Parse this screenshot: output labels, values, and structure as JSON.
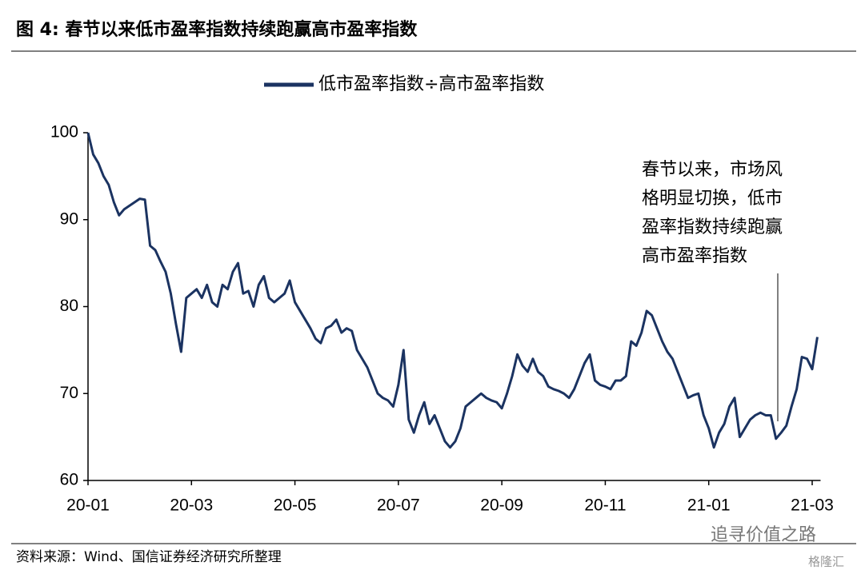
{
  "chart_data": {
    "type": "line",
    "title": "图 4: 春节以来低市盈率指数持续跑赢高市盈率指数",
    "source": "资料来源：Wind、国信证券经济研究所整理",
    "annotation": [
      "春节以来，市场风",
      "格明显切换，低市",
      "盈率指数持续跑赢",
      "高市盈率指数"
    ],
    "watermarks": [
      "追寻价值之路",
      "格隆汇"
    ],
    "categories": [
      "20-01",
      null,
      null,
      null,
      null,
      null,
      null,
      null,
      null,
      null,
      null,
      null,
      null,
      null,
      null,
      null,
      null,
      null,
      null,
      null,
      "20-03",
      null,
      null,
      null,
      null,
      null,
      null,
      null,
      null,
      null,
      null,
      null,
      null,
      null,
      null,
      null,
      null,
      null,
      null,
      null,
      "20-05",
      null,
      null,
      null,
      null,
      null,
      null,
      null,
      null,
      null,
      null,
      null,
      null,
      null,
      null,
      null,
      null,
      null,
      null,
      null,
      "20-07",
      null,
      null,
      null,
      null,
      null,
      null,
      null,
      null,
      null,
      null,
      null,
      null,
      null,
      null,
      null,
      null,
      null,
      null,
      null,
      "20-09",
      null,
      null,
      null,
      null,
      null,
      null,
      null,
      null,
      null,
      null,
      null,
      null,
      null,
      null,
      null,
      null,
      null,
      null,
      null,
      "20-11",
      null,
      null,
      null,
      null,
      null,
      null,
      null,
      null,
      null,
      null,
      null,
      null,
      null,
      null,
      null,
      null,
      null,
      null,
      null,
      "21-01",
      null,
      null,
      null,
      null,
      null,
      null,
      null,
      null,
      null,
      null,
      null,
      null,
      null,
      null,
      null,
      null,
      null,
      null,
      null,
      "21-03",
      null
    ],
    "series": [
      {
        "name": "低市盈率指数÷高市盈率指数",
        "color": "#1b3361",
        "values": [
          100,
          97.5,
          96.5,
          95,
          94,
          92,
          90.5,
          91.2,
          91.6,
          92,
          92.4,
          92.3,
          87,
          86.5,
          85.2,
          84,
          81.5,
          78,
          74.8,
          81,
          81.5,
          82,
          81,
          82.5,
          80.5,
          80,
          82.5,
          82,
          84,
          85,
          81.5,
          81.8,
          80,
          82.5,
          83.5,
          81,
          80.5,
          81,
          81.5,
          83,
          80.5,
          79.5,
          78.5,
          77.5,
          76.3,
          75.8,
          77.5,
          77.8,
          78.5,
          77,
          77.5,
          77.2,
          75,
          74,
          73,
          71.5,
          70,
          69.5,
          69.2,
          68.5,
          71,
          75,
          67,
          65.5,
          67.5,
          69,
          66.5,
          67.5,
          66,
          64.5,
          63.8,
          64.5,
          66,
          68.5,
          69,
          69.5,
          70,
          69.5,
          69.2,
          69,
          68.3,
          70,
          72,
          74.5,
          73.2,
          72.5,
          74,
          72.5,
          72,
          70.8,
          70.5,
          70.3,
          70,
          69.5,
          70.5,
          72,
          73.5,
          74.5,
          71.5,
          71,
          70.8,
          70.5,
          71.5,
          71.5,
          72,
          76,
          75.5,
          77,
          79.5,
          79,
          77.5,
          76,
          74.8,
          74,
          72.5,
          71,
          69.5,
          69.8,
          70,
          67.5,
          66,
          63.8,
          65.5,
          66.5,
          68.5,
          69.5,
          65,
          66,
          67,
          67.5,
          67.8,
          67.5,
          67.5,
          64.8,
          65.5,
          66.3,
          68.5,
          70.5,
          74.2,
          74,
          72.8,
          76.5
        ]
      }
    ],
    "ylim": [
      60,
      100
    ],
    "yticks": [
      60,
      70,
      80,
      90,
      100
    ]
  }
}
